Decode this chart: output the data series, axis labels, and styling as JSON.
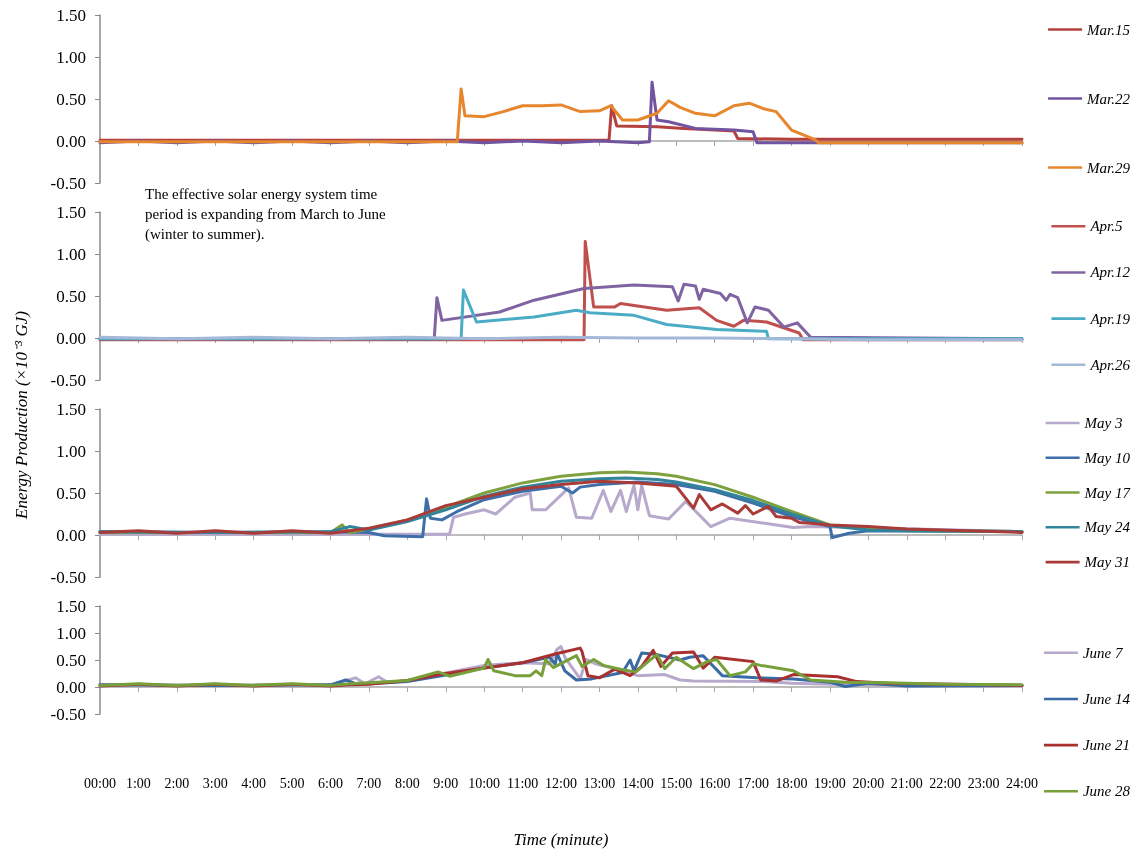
{
  "chart_data": [
    {
      "type": "line",
      "legend": "right",
      "marker": "none",
      "line_style": "solid",
      "tick_labels": "y",
      "xlim": [
        0,
        24
      ],
      "xticks": [
        {
          "value": 0,
          "label": null
        },
        {
          "value": 1,
          "label": null
        },
        {
          "value": 2,
          "label": null
        },
        {
          "value": 3,
          "label": null
        },
        {
          "value": 4,
          "label": null
        },
        {
          "value": 5,
          "label": null
        },
        {
          "value": 6,
          "label": null
        },
        {
          "value": 7,
          "label": null
        },
        {
          "value": 8,
          "label": null
        },
        {
          "value": 9,
          "label": null
        },
        {
          "value": 10,
          "label": null
        },
        {
          "value": 11,
          "label": null
        },
        {
          "value": 12,
          "label": null
        },
        {
          "value": 13,
          "label": null
        },
        {
          "value": 14,
          "label": null
        },
        {
          "value": 15,
          "label": null
        },
        {
          "value": 16,
          "label": null
        },
        {
          "value": 17,
          "label": null
        },
        {
          "value": 18,
          "label": null
        },
        {
          "value": 19,
          "label": null
        },
        {
          "value": 20,
          "label": null
        },
        {
          "value": 21,
          "label": null
        },
        {
          "value": 22,
          "label": null
        },
        {
          "value": 23,
          "label": null
        },
        {
          "value": 24,
          "label": null
        }
      ],
      "ylim": [
        -0.5,
        1.5
      ],
      "yticks": [
        {
          "value": -0.5,
          "label": "-0.50"
        },
        {
          "value": 0,
          "label": "0.00"
        },
        {
          "value": 0.5,
          "label": "0.50"
        },
        {
          "value": 1,
          "label": "1.00"
        },
        {
          "value": 1.5,
          "label": "1.50"
        }
      ],
      "series": [
        {
          "name": "Mar.15",
          "color": "#b5413e",
          "x": [
            0,
            4,
            8,
            12,
            13.25,
            13.32,
            13.45,
            14.5,
            15.2,
            16,
            16.5,
            16.6,
            18,
            24
          ],
          "values": [
            0.01,
            0.01,
            0.01,
            0.01,
            0.01,
            0.42,
            0.18,
            0.17,
            0.15,
            0.13,
            0.12,
            0.03,
            0.02,
            0.02
          ]
        },
        {
          "name": "Mar.22",
          "color": "#7054a0",
          "x": [
            0,
            1,
            2,
            3,
            4,
            5,
            6,
            7,
            8,
            9,
            10,
            11,
            12,
            13,
            14,
            14.3,
            14.37,
            14.5,
            14.8,
            15.5,
            16.5,
            17,
            17.1,
            24
          ],
          "values": [
            -0.02,
            0,
            -0.02,
            0,
            -0.02,
            0,
            -0.02,
            0,
            -0.02,
            0,
            -0.02,
            0,
            -0.02,
            0,
            -0.02,
            -0.01,
            0.7,
            0.25,
            0.23,
            0.15,
            0.13,
            0.11,
            -0.02,
            -0.02
          ]
        },
        {
          "name": "Mar.29",
          "color": "#e6872e",
          "x": [
            0,
            2,
            4,
            6,
            8,
            9.3,
            9.4,
            9.5,
            10,
            10.5,
            11,
            11.5,
            12,
            12.5,
            13,
            13.3,
            13.6,
            14,
            14.5,
            14.8,
            15.1,
            15.5,
            16,
            16.5,
            16.9,
            17.3,
            17.6,
            18,
            18.6,
            18.7,
            24
          ],
          "values": [
            -0.01,
            -0.01,
            -0.01,
            -0.01,
            -0.01,
            -0.01,
            0.62,
            0.3,
            0.29,
            0.35,
            0.42,
            0.42,
            0.43,
            0.35,
            0.36,
            0.42,
            0.25,
            0.25,
            0.33,
            0.48,
            0.4,
            0.33,
            0.3,
            0.42,
            0.45,
            0.38,
            0.35,
            0.13,
            0.02,
            -0.02,
            -0.02
          ]
        }
      ]
    },
    {
      "type": "line",
      "legend": "right",
      "marker": "none",
      "line_style": "solid",
      "tick_labels": "y",
      "annotations": [
        "The effective solar energy system time period is expanding from March to June (winter to summer)."
      ],
      "xlim": [
        0,
        24
      ],
      "xticks": [
        {
          "value": 0,
          "label": null
        },
        {
          "value": 1,
          "label": null
        },
        {
          "value": 2,
          "label": null
        },
        {
          "value": 3,
          "label": null
        },
        {
          "value": 4,
          "label": null
        },
        {
          "value": 5,
          "label": null
        },
        {
          "value": 6,
          "label": null
        },
        {
          "value": 7,
          "label": null
        },
        {
          "value": 8,
          "label": null
        },
        {
          "value": 9,
          "label": null
        },
        {
          "value": 10,
          "label": null
        },
        {
          "value": 11,
          "label": null
        },
        {
          "value": 12,
          "label": null
        },
        {
          "value": 13,
          "label": null
        },
        {
          "value": 14,
          "label": null
        },
        {
          "value": 15,
          "label": null
        },
        {
          "value": 16,
          "label": null
        },
        {
          "value": 17,
          "label": null
        },
        {
          "value": 18,
          "label": null
        },
        {
          "value": 19,
          "label": null
        },
        {
          "value": 20,
          "label": null
        },
        {
          "value": 21,
          "label": null
        },
        {
          "value": 22,
          "label": null
        },
        {
          "value": 23,
          "label": null
        },
        {
          "value": 24,
          "label": null
        }
      ],
      "ylim": [
        -0.5,
        1.5
      ],
      "yticks": [
        {
          "value": -0.5,
          "label": "-0.50"
        },
        {
          "value": 0,
          "label": "0.00"
        },
        {
          "value": 0.5,
          "label": "0.50"
        },
        {
          "value": 1,
          "label": "1.00"
        },
        {
          "value": 1.5,
          "label": "1.50"
        }
      ],
      "series": [
        {
          "name": "Apr.5",
          "color": "#c0504d",
          "x": [
            0,
            6,
            12,
            12.6,
            12.63,
            12.85,
            13.4,
            13.55,
            14.75,
            15.6,
            16.05,
            16.5,
            16.75,
            17.35,
            18.2,
            18.3,
            24
          ],
          "values": [
            -0.02,
            -0.02,
            -0.02,
            -0.02,
            1.15,
            0.37,
            0.37,
            0.41,
            0.33,
            0.36,
            0.21,
            0.14,
            0.21,
            0.19,
            0.06,
            -0.02,
            -0.02
          ]
        },
        {
          "name": "Apr.12",
          "color": "#8064a2",
          "x": [
            0,
            6,
            8.7,
            8.77,
            8.9,
            10.4,
            11.3,
            12.6,
            13.9,
            14.9,
            15.05,
            15.2,
            15.5,
            15.6,
            15.7,
            16.15,
            16.3,
            16.4,
            16.6,
            16.85,
            17.05,
            17.4,
            17.8,
            18.15,
            18.5,
            24
          ],
          "values": [
            -0.01,
            -0.01,
            -0.01,
            0.48,
            0.21,
            0.31,
            0.45,
            0.59,
            0.63,
            0.61,
            0.44,
            0.64,
            0.62,
            0.46,
            0.58,
            0.53,
            0.45,
            0.52,
            0.48,
            0.18,
            0.37,
            0.33,
            0.13,
            0.18,
            0.01,
            -0.01
          ]
        },
        {
          "name": "Apr.19",
          "color": "#4bacc6",
          "x": [
            0,
            6,
            9.4,
            9.46,
            9.8,
            11.3,
            12.4,
            12.75,
            13.9,
            14.75,
            16.05,
            17.35,
            17.4,
            24
          ],
          "values": [
            -0.01,
            -0.01,
            -0.01,
            0.57,
            0.19,
            0.25,
            0.33,
            0.3,
            0.27,
            0.16,
            0.1,
            0.08,
            -0.01,
            -0.01
          ]
        },
        {
          "name": "Apr.26",
          "color": "#a4b8d8",
          "x": [
            0,
            2,
            4,
            6,
            8,
            10,
            12,
            14,
            16,
            18,
            20,
            22,
            24
          ],
          "values": [
            0.01,
            -0.01,
            0.01,
            -0.01,
            0.01,
            -0.01,
            0.01,
            0,
            0,
            -0.01,
            -0.02,
            -0.02,
            -0.02
          ]
        }
      ]
    },
    {
      "type": "line",
      "legend": "right",
      "marker": "none",
      "line_style": "solid",
      "tick_labels": "y",
      "ylabel": "Energy Production (×10⁻³ GJ)",
      "xlim": [
        0,
        24
      ],
      "xticks": [
        {
          "value": 0,
          "label": null
        },
        {
          "value": 1,
          "label": null
        },
        {
          "value": 2,
          "label": null
        },
        {
          "value": 3,
          "label": null
        },
        {
          "value": 4,
          "label": null
        },
        {
          "value": 5,
          "label": null
        },
        {
          "value": 6,
          "label": null
        },
        {
          "value": 7,
          "label": null
        },
        {
          "value": 8,
          "label": null
        },
        {
          "value": 9,
          "label": null
        },
        {
          "value": 10,
          "label": null
        },
        {
          "value": 11,
          "label": null
        },
        {
          "value": 12,
          "label": null
        },
        {
          "value": 13,
          "label": null
        },
        {
          "value": 14,
          "label": null
        },
        {
          "value": 15,
          "label": null
        },
        {
          "value": 16,
          "label": null
        },
        {
          "value": 17,
          "label": null
        },
        {
          "value": 18,
          "label": null
        },
        {
          "value": 19,
          "label": null
        },
        {
          "value": 20,
          "label": null
        },
        {
          "value": 21,
          "label": null
        },
        {
          "value": 22,
          "label": null
        },
        {
          "value": 23,
          "label": null
        },
        {
          "value": 24,
          "label": null
        }
      ],
      "ylim": [
        -0.5,
        1.5
      ],
      "yticks": [
        {
          "value": -0.5,
          "label": "-0.50"
        },
        {
          "value": 0,
          "label": "0.00"
        },
        {
          "value": 0.5,
          "label": "0.50"
        },
        {
          "value": 1,
          "label": "1.00"
        },
        {
          "value": 1.5,
          "label": "1.50"
        }
      ],
      "series": [
        {
          "name": "May 3",
          "color": "#b7a9cb",
          "x": [
            0,
            4,
            8,
            9.1,
            9.2,
            9.5,
            10,
            10.3,
            10.8,
            11.2,
            11.25,
            11.6,
            12.2,
            12.4,
            12.8,
            13.1,
            13.3,
            13.55,
            13.7,
            13.9,
            14,
            14.1,
            14.3,
            14.8,
            15.25,
            15.9,
            16.4,
            17.3,
            18.05,
            18.5,
            24
          ],
          "values": [
            0.01,
            0.01,
            0.01,
            0.01,
            0.21,
            0.25,
            0.3,
            0.25,
            0.45,
            0.5,
            0.3,
            0.3,
            0.56,
            0.21,
            0.2,
            0.53,
            0.28,
            0.53,
            0.28,
            0.59,
            0.3,
            0.59,
            0.23,
            0.19,
            0.4,
            0.1,
            0.2,
            0.14,
            0.09,
            0.1,
            0.04
          ]
        },
        {
          "name": "May 10",
          "color": "#3e6fa8",
          "x": [
            0,
            3,
            6,
            7,
            7.4,
            8.4,
            8.5,
            8.6,
            8.9,
            9.3,
            10,
            11,
            12,
            12.3,
            12.5,
            13,
            14,
            15,
            16,
            17,
            18,
            19,
            19.06,
            19.5,
            20,
            24
          ],
          "values": [
            0.04,
            0.03,
            0.04,
            0.03,
            -0.01,
            -0.02,
            0.43,
            0.2,
            0.18,
            0.28,
            0.42,
            0.52,
            0.58,
            0.5,
            0.57,
            0.6,
            0.63,
            0.6,
            0.52,
            0.38,
            0.22,
            0.1,
            -0.03,
            0.02,
            0.05,
            0.04
          ]
        },
        {
          "name": "May 17",
          "color": "#7ea13e",
          "x": [
            0,
            3,
            6,
            6.3,
            6.5,
            7,
            8,
            9,
            10,
            11,
            12,
            13,
            13.7,
            14.5,
            15,
            16,
            17,
            18,
            19,
            20,
            21,
            24
          ],
          "values": [
            0.03,
            0.03,
            0.03,
            0.12,
            0.03,
            0.07,
            0.18,
            0.33,
            0.5,
            0.62,
            0.7,
            0.74,
            0.75,
            0.73,
            0.7,
            0.6,
            0.45,
            0.28,
            0.12,
            0.07,
            0.05,
            0.04
          ]
        },
        {
          "name": "May 24",
          "color": "#31849b",
          "x": [
            0,
            3,
            6,
            6.5,
            7,
            8,
            9,
            10,
            11,
            12,
            13,
            13.7,
            14.5,
            15,
            16,
            17,
            18,
            19,
            20,
            21,
            24
          ],
          "values": [
            0.04,
            0.03,
            0.04,
            0.1,
            0.06,
            0.16,
            0.3,
            0.46,
            0.57,
            0.64,
            0.67,
            0.68,
            0.66,
            0.63,
            0.54,
            0.41,
            0.25,
            0.11,
            0.06,
            0.05,
            0.04
          ]
        },
        {
          "name": "May 31",
          "color": "#a93b38",
          "x": [
            0,
            1,
            2,
            3,
            4,
            5,
            6,
            6.5,
            7,
            8,
            9,
            10,
            11,
            12,
            13,
            14,
            15,
            15.45,
            15.6,
            15.9,
            16.2,
            16.6,
            16.8,
            17,
            17.4,
            17.6,
            18,
            18.2,
            18.5,
            19,
            20,
            21,
            24
          ],
          "values": [
            0.03,
            0.05,
            0.02,
            0.05,
            0.02,
            0.05,
            0.02,
            0.05,
            0.08,
            0.18,
            0.35,
            0.45,
            0.55,
            0.6,
            0.64,
            0.62,
            0.58,
            0.32,
            0.48,
            0.3,
            0.37,
            0.26,
            0.35,
            0.25,
            0.34,
            0.22,
            0.2,
            0.15,
            0.14,
            0.12,
            0.1,
            0.07,
            0.03
          ]
        }
      ]
    },
    {
      "type": "line",
      "legend": "right",
      "marker": "none",
      "line_style": "solid",
      "xlabel": "Time (minute)",
      "xlim": [
        0,
        24
      ],
      "xticks": [
        {
          "value": 0,
          "label": "00:00"
        },
        {
          "value": 1,
          "label": "1:00"
        },
        {
          "value": 2,
          "label": "2:00"
        },
        {
          "value": 3,
          "label": "3:00"
        },
        {
          "value": 4,
          "label": "4:00"
        },
        {
          "value": 5,
          "label": "5:00"
        },
        {
          "value": 6,
          "label": "6:00"
        },
        {
          "value": 7,
          "label": "7:00"
        },
        {
          "value": 8,
          "label": "8:00"
        },
        {
          "value": 9,
          "label": "9:00"
        },
        {
          "value": 10,
          "label": "10:00"
        },
        {
          "value": 11,
          "label": "11:00"
        },
        {
          "value": 12,
          "label": "12:00"
        },
        {
          "value": 13,
          "label": "13:00"
        },
        {
          "value": 14,
          "label": "14:00"
        },
        {
          "value": 15,
          "label": "15:00"
        },
        {
          "value": 16,
          "label": "16:00"
        },
        {
          "value": 17,
          "label": "17:00"
        },
        {
          "value": 18,
          "label": "18:00"
        },
        {
          "value": 19,
          "label": "19:00"
        },
        {
          "value": 20,
          "label": "20:00"
        },
        {
          "value": 21,
          "label": "21:00"
        },
        {
          "value": 22,
          "label": "22:00"
        },
        {
          "value": 23,
          "label": "23:00"
        },
        {
          "value": 24,
          "label": "24:00"
        }
      ],
      "ylim": [
        -0.5,
        1.5
      ],
      "yticks": [
        {
          "value": -0.5,
          "label": "-0.50"
        },
        {
          "value": 0,
          "label": "0.00"
        },
        {
          "value": 0.5,
          "label": "0.50"
        },
        {
          "value": 1,
          "label": "1.00"
        },
        {
          "value": 1.5,
          "label": "1.50"
        }
      ],
      "series": [
        {
          "name": "June 7",
          "color": "#b7a9cb",
          "x": [
            0,
            3,
            6,
            6.65,
            6.9,
            7.25,
            7.5,
            8,
            9,
            10,
            11,
            11.7,
            11.9,
            12,
            12.1,
            12.5,
            12.65,
            12.9,
            13.6,
            14,
            14.7,
            15.1,
            15.45,
            17.3,
            18,
            19,
            21,
            24
          ],
          "values": [
            0.04,
            0.03,
            0.04,
            0.17,
            0.06,
            0.19,
            0.08,
            0.12,
            0.26,
            0.4,
            0.45,
            0.43,
            0.7,
            0.75,
            0.55,
            0.15,
            0.51,
            0.43,
            0.3,
            0.21,
            0.23,
            0.13,
            0.11,
            0.1,
            0.07,
            0.05,
            0.03,
            0.02
          ]
        },
        {
          "name": "June 14",
          "color": "#3a6aa5",
          "x": [
            0,
            3,
            6,
            6.4,
            6.7,
            7,
            8,
            9,
            10,
            11,
            11.7,
            11.85,
            11.9,
            12.1,
            12.4,
            12.8,
            13.6,
            13.8,
            13.9,
            14.1,
            14.5,
            15.1,
            15.35,
            15.7,
            16.2,
            17.1,
            18.05,
            19,
            19.4,
            20,
            21,
            24
          ],
          "values": [
            0.04,
            0.03,
            0.04,
            0.13,
            0.05,
            0.06,
            0.1,
            0.22,
            0.35,
            0.45,
            0.55,
            0.42,
            0.62,
            0.3,
            0.13,
            0.15,
            0.27,
            0.5,
            0.3,
            0.63,
            0.6,
            0.5,
            0.55,
            0.58,
            0.21,
            0.17,
            0.15,
            0.09,
            0.01,
            0.07,
            0.02,
            0.03
          ]
        },
        {
          "name": "June 21",
          "color": "#a8302f",
          "x": [
            0,
            1,
            2,
            3,
            4,
            5,
            6,
            6.5,
            7,
            8,
            9,
            10,
            11,
            11.9,
            12.5,
            12.55,
            12.7,
            13,
            13.4,
            13.8,
            14.1,
            14.4,
            14.6,
            14.9,
            15.45,
            15.7,
            16,
            17,
            17.2,
            17.6,
            18.05,
            19.2,
            19.7,
            20.5,
            24
          ],
          "values": [
            0.02,
            0.05,
            0.02,
            0.05,
            0.02,
            0.05,
            0.02,
            0.04,
            0.05,
            0.12,
            0.25,
            0.35,
            0.45,
            0.62,
            0.72,
            0.65,
            0.21,
            0.17,
            0.33,
            0.21,
            0.38,
            0.68,
            0.38,
            0.63,
            0.65,
            0.35,
            0.55,
            0.47,
            0.13,
            0.11,
            0.23,
            0.19,
            0.1,
            0.07,
            0.03
          ]
        },
        {
          "name": "June 28",
          "color": "#77a03a",
          "x": [
            0,
            1,
            2,
            3,
            4,
            5,
            6,
            6.5,
            7,
            8,
            8.8,
            9.1,
            10,
            10.1,
            10.25,
            10.8,
            11.2,
            11.35,
            11.5,
            11.6,
            11.8,
            12.4,
            12.55,
            12.85,
            13.1,
            13.6,
            13.95,
            14.3,
            14.5,
            14.7,
            15,
            15.45,
            15.8,
            16.05,
            16.4,
            16.8,
            17,
            17.2,
            18.05,
            18.5,
            19.4,
            20.5,
            22,
            24
          ],
          "values": [
            0.03,
            0.06,
            0.03,
            0.06,
            0.03,
            0.06,
            0.03,
            0.06,
            0.08,
            0.12,
            0.28,
            0.2,
            0.35,
            0.51,
            0.3,
            0.21,
            0.21,
            0.3,
            0.21,
            0.51,
            0.36,
            0.58,
            0.38,
            0.51,
            0.4,
            0.32,
            0.28,
            0.49,
            0.6,
            0.34,
            0.55,
            0.34,
            0.47,
            0.51,
            0.21,
            0.28,
            0.43,
            0.4,
            0.3,
            0.13,
            0.09,
            0.08,
            0.05,
            0.04
          ]
        }
      ]
    }
  ]
}
